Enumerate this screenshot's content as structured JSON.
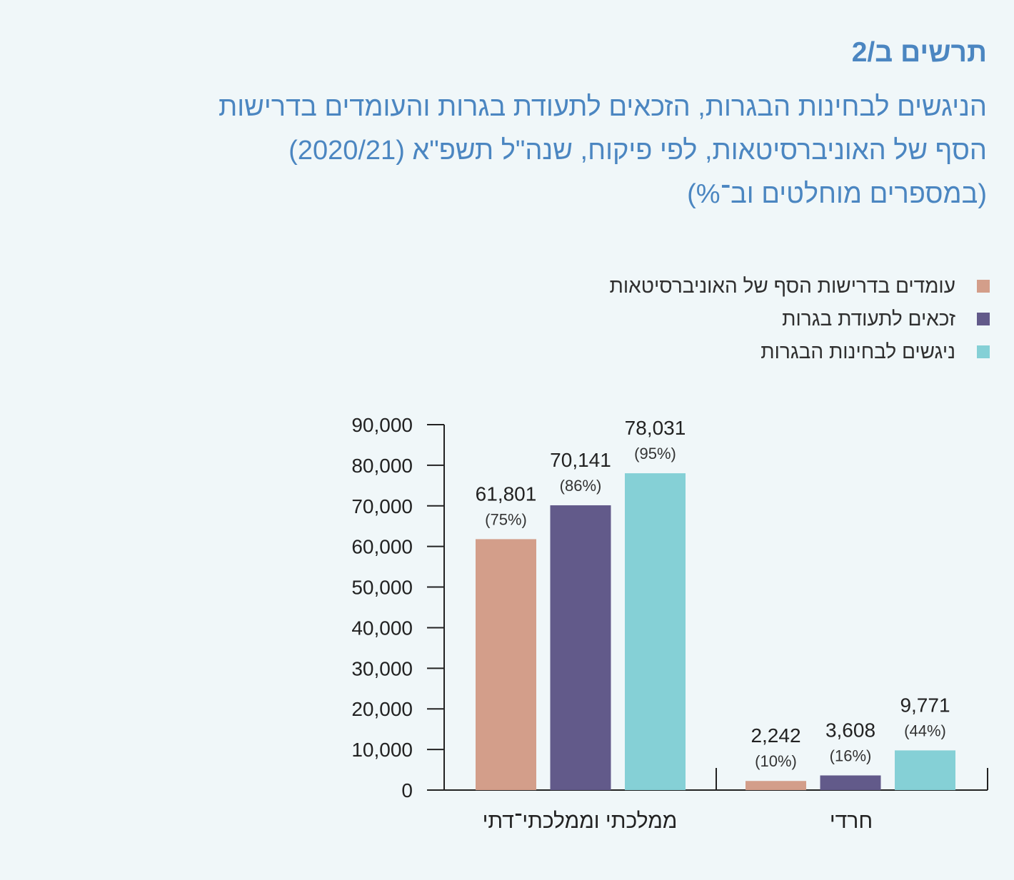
{
  "figure": {
    "label": "תרשים ב/2",
    "title_lines": [
      "הניגשים לבחינות הבגרות, הזכאים לתעודת בגרות והעומדים בדרישות",
      "הסף של האוניברסיטאות, לפי פיקוח, שנה\"ל תשפ\"א (2020/21)",
      "(במספרים מוחלטים וב־%)"
    ]
  },
  "colors": {
    "threshold": "#d39e8a",
    "eligible": "#625a8a",
    "examinees": "#85d0d6",
    "title": "#4b86c1",
    "background": "#f0f7f9",
    "axis": "#222222"
  },
  "chart_data": {
    "type": "bar",
    "title": "הניגשים לבחינות הבגרות, הזכאים לתעודת בגרות והעומדים בדרישות הסף של האוניברסיטאות, לפי פיקוח, שנה\"ל תשפ\"א (2020/21) (במספרים מוחלטים וב־%)",
    "categories": [
      "ממלכתי וממלכתי־דתי",
      "חרדי"
    ],
    "ylim": [
      0,
      90000
    ],
    "yticks": [
      0,
      10000,
      20000,
      30000,
      40000,
      50000,
      60000,
      70000,
      80000,
      90000
    ],
    "ytick_labels": [
      "0",
      "10,000",
      "20,000",
      "30,000",
      "40,000",
      "50,000",
      "60,000",
      "70,000",
      "80,000",
      "90,000"
    ],
    "legend_position": "top-right",
    "grid": false,
    "series": [
      {
        "name": "עומדים בדרישות הסף של האוניברסיטאות",
        "color": "#d39e8a",
        "values": [
          61801,
          2242
        ],
        "value_labels": [
          "61,801",
          "2,242"
        ],
        "percent_labels": [
          "(75%)",
          "(10%)"
        ]
      },
      {
        "name": "זכאים לתעודת בגרות",
        "color": "#625a8a",
        "values": [
          70141,
          3608
        ],
        "value_labels": [
          "70,141",
          "3,608"
        ],
        "percent_labels": [
          "(86%)",
          "(16%)"
        ]
      },
      {
        "name": "ניגשים לבחינות הבגרות",
        "color": "#85d0d6",
        "values": [
          78031,
          9771
        ],
        "value_labels": [
          "78,031",
          "9,771"
        ],
        "percent_labels": [
          "(95%)",
          "(44%)"
        ]
      }
    ]
  }
}
